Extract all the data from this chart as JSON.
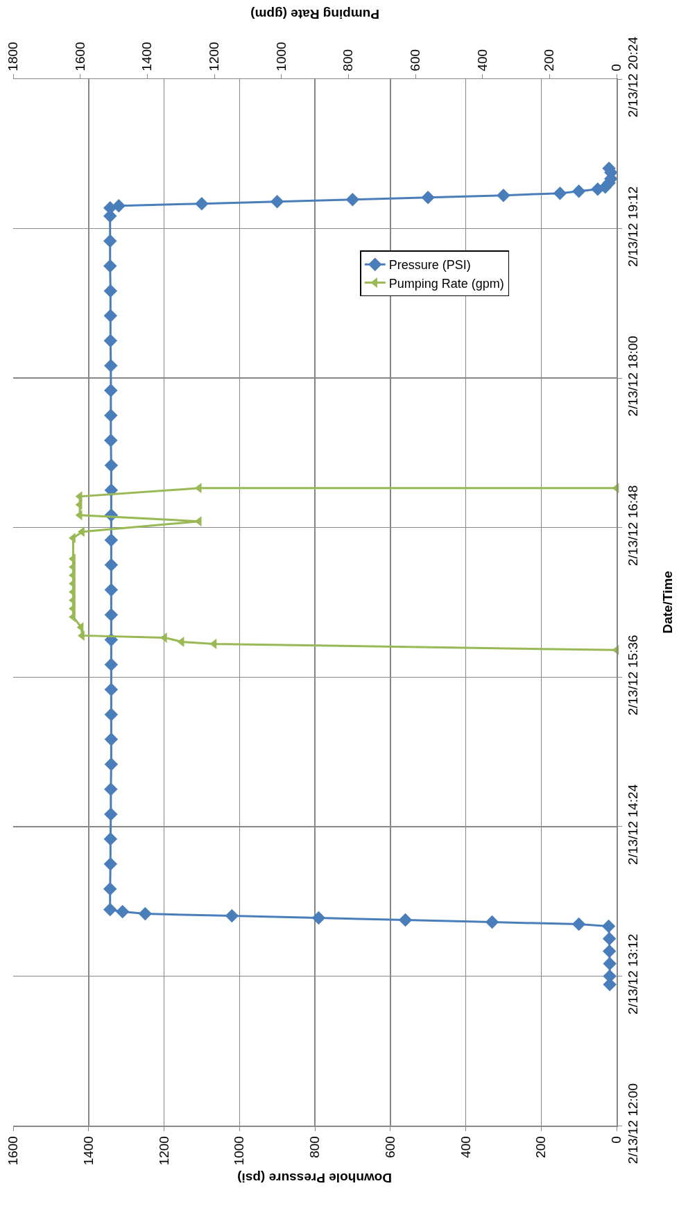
{
  "chart_data": {
    "type": "line",
    "orientation": "horizontal",
    "xlabel": "Downhole Pressure (psi)",
    "x2label": "Pumping Rate (gpm)",
    "ylabel": "Date/Time",
    "ylim": [
      "--02-13T12:00",
      "--02-13T20:24"
    ],
    "yticks": [
      {
        "value": "--02-13T12:00",
        "label": "2/13/12 12:00"
      },
      {
        "value": "--02-13T13:12",
        "label": "2/13/12 13:12"
      },
      {
        "value": "--02-13T14:24",
        "label": "2/13/12 14:24"
      },
      {
        "value": "--02-13T15:36",
        "label": "2/13/12 15:36"
      },
      {
        "value": "--02-13T16:48",
        "label": "2/13/12 16:48"
      },
      {
        "value": "--02-13T18:00",
        "label": "2/13/12 18:00"
      },
      {
        "value": "--02-13T19:12",
        "label": "2/13/12 19:12"
      },
      {
        "value": "--02-13T20:24",
        "label": "2/13/12 20:24"
      }
    ],
    "xlim": [
      1600,
      0
    ],
    "xticks": [
      0,
      200,
      400,
      600,
      800,
      1000,
      1200,
      1400,
      1600
    ],
    "x2lim": [
      1800,
      0
    ],
    "x2ticks": [
      0,
      200,
      400,
      600,
      800,
      1000,
      1200,
      1400,
      1600,
      1800
    ],
    "grid": true,
    "legend": "center",
    "line_style": "solid",
    "series": [
      {
        "name": "Pressure (PSI)",
        "color": "#4a7ebb",
        "marker": "diamond",
        "x": [
          "--02-13T13:08",
          "--02-13T13:12",
          "--02-13T13:18",
          "--02-13T13:24",
          "--02-13T13:30",
          "--02-13T13:36",
          "--02-13T13:37",
          "--02-13T13:38",
          "--02-13T13:39",
          "--02-13T13:40",
          "--02-13T13:41",
          "--02-13T13:42",
          "--02-13T13:43",
          "--02-13T13:44",
          "--02-13T13:54",
          "--02-13T14:06",
          "--02-13T14:18",
          "--02-13T14:30",
          "--02-13T14:42",
          "--02-13T14:54",
          "--02-13T15:06",
          "--02-13T15:18",
          "--02-13T15:30",
          "--02-13T15:42",
          "--02-13T15:54",
          "--02-13T16:06",
          "--02-13T16:18",
          "--02-13T16:30",
          "--02-13T16:42",
          "--02-13T16:54",
          "--02-13T17:06",
          "--02-13T17:18",
          "--02-13T17:30",
          "--02-13T17:42",
          "--02-13T17:54",
          "--02-13T18:06",
          "--02-13T18:18",
          "--02-13T18:30",
          "--02-13T18:42",
          "--02-13T18:54",
          "--02-13T19:06",
          "--02-13T19:18",
          "--02-13T19:22",
          "--02-13T19:23",
          "--02-13T19:24",
          "--02-13T19:25",
          "--02-13T19:26",
          "--02-13T19:27",
          "--02-13T19:28",
          "--02-13T19:29",
          "--02-13T19:30",
          "--02-13T19:31",
          "--02-13T19:32",
          "--02-13T19:34",
          "--02-13T19:36",
          "--02-13T19:39",
          "--02-13T19:41"
        ],
        "values": [
          18,
          18,
          18,
          19,
          19,
          21,
          100,
          330,
          560,
          790,
          1020,
          1250,
          1310,
          1343,
          1343,
          1342,
          1342,
          1341,
          1341,
          1340,
          1340,
          1340,
          1340,
          1340,
          1340,
          1340,
          1340,
          1340,
          1340,
          1340,
          1340,
          1340,
          1341,
          1341,
          1341,
          1341,
          1342,
          1342,
          1342,
          1343,
          1343,
          1343,
          1343,
          1320,
          1100,
          900,
          700,
          500,
          300,
          150,
          100,
          50,
          30,
          20,
          15,
          15,
          20
        ]
      },
      {
        "name": "Pumping Rate (gpm)",
        "color": "#98b954",
        "marker": "triangle",
        "axis": "x2",
        "x": [
          "--02-13T15:49",
          "--02-13T15:52",
          "--02-13T15:53",
          "--02-13T15:55",
          "--02-13T15:56",
          "--02-13T16:00",
          "--02-13T16:05",
          "--02-13T16:09",
          "--02-13T16:13",
          "--02-13T16:17",
          "--02-13T16:21",
          "--02-13T16:25",
          "--02-13T16:29",
          "--02-13T16:33",
          "--02-13T16:43",
          "--02-13T16:46",
          "--02-13T16:51",
          "--02-13T16:54",
          "--02-13T16:59",
          "--02-13T17:03",
          "--02-13T17:07",
          "--02-13T17:07"
        ],
        "values": [
          0,
          1200,
          1297,
          1348,
          1594,
          1597,
          1621,
          1621,
          1621,
          1621,
          1621,
          1621,
          1621,
          1621,
          1621,
          1594,
          1245,
          1601,
          1601,
          1601,
          1245,
          0
        ]
      }
    ]
  }
}
